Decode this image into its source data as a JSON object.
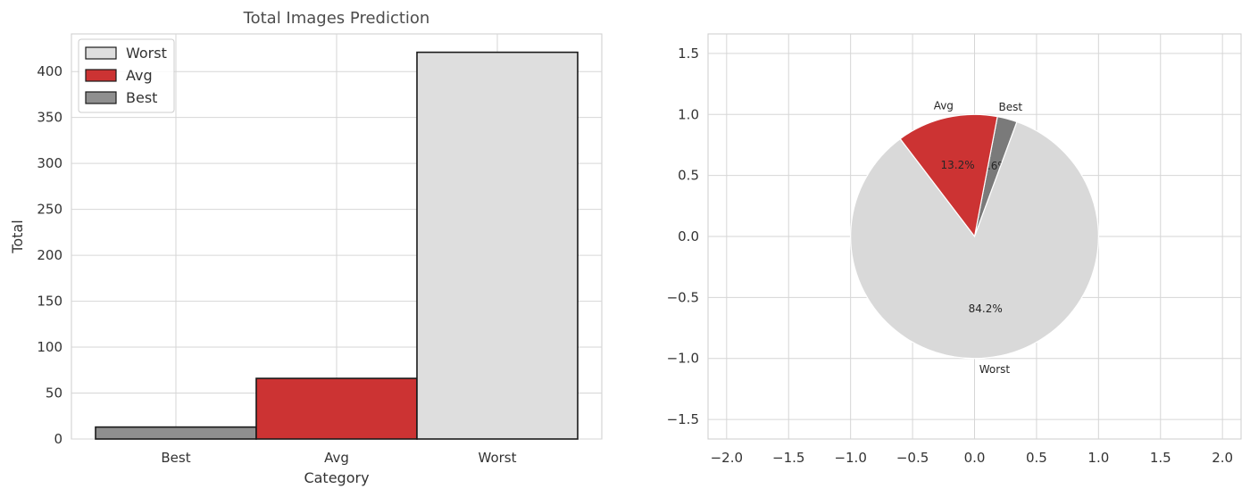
{
  "chart_data": [
    {
      "type": "bar",
      "title": "Total Images Prediction",
      "xlabel": "Category",
      "ylabel": "Total",
      "categories": [
        "Best",
        "Avg",
        "Worst"
      ],
      "values": [
        13,
        66,
        421
      ],
      "colors": [
        "#8f8f8f",
        "#cc3333",
        "#dedede"
      ],
      "ylim": [
        0,
        441
      ],
      "yticks": [
        0,
        50,
        100,
        150,
        200,
        250,
        300,
        350,
        400
      ],
      "grid": true,
      "legend": {
        "position": "top-left",
        "entries": [
          {
            "label": "Worst",
            "color": "#dedede"
          },
          {
            "label": "Avg",
            "color": "#cc3333"
          },
          {
            "label": "Best",
            "color": "#8f8f8f"
          }
        ]
      }
    },
    {
      "type": "pie",
      "labels": [
        "Best",
        "Avg",
        "Worst"
      ],
      "values": [
        2.6,
        13.2,
        84.2
      ],
      "percent_labels": [
        "2.6%",
        "13.2%",
        "84.2%"
      ],
      "colors": [
        "#7a7a7a",
        "#cc3333",
        "#d9d9d9"
      ],
      "start_angle_deg": 70,
      "xlim": [
        -2.15,
        2.15
      ],
      "ylim": [
        -1.66,
        1.66
      ],
      "xticks": [
        -2.0,
        -1.5,
        -1.0,
        -0.5,
        0.0,
        0.5,
        1.0,
        1.5,
        2.0
      ],
      "yticks": [
        -1.5,
        -1.0,
        -0.5,
        0.0,
        0.5,
        1.0,
        1.5
      ],
      "tick_labels_x": [
        "−2.0",
        "−1.5",
        "−1.0",
        "−0.5",
        "0.0",
        "0.5",
        "1.0",
        "1.5",
        "2.0"
      ],
      "tick_labels_y": [
        "−1.5",
        "−1.0",
        "−0.5",
        "0.0",
        "0.5",
        "1.0",
        "1.5"
      ],
      "grid": true
    }
  ]
}
